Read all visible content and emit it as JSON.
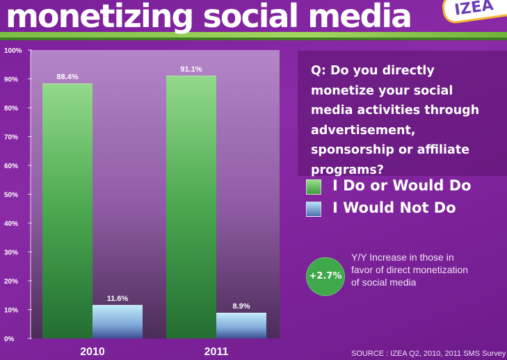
{
  "header": {
    "title": "monetizing social media",
    "logo_text": "IZEA"
  },
  "chart_data": {
    "type": "bar",
    "categories": [
      "2010",
      "2011"
    ],
    "series": [
      {
        "name": "I Do or Would Do",
        "values": [
          88.4,
          91.1
        ],
        "value_labels": [
          "88.4%",
          "91.1%"
        ],
        "color": "#4aa84e"
      },
      {
        "name": "I Would Not Do",
        "values": [
          11.6,
          8.9
        ],
        "value_labels": [
          "11.6%",
          "8.9%"
        ],
        "color": "#8ec9ea"
      }
    ],
    "ylim": [
      0,
      100
    ],
    "yticks": [
      0,
      10,
      20,
      30,
      40,
      50,
      60,
      70,
      80,
      90,
      100
    ],
    "ytick_labels": [
      "0%",
      "10%",
      "20%",
      "30%",
      "40%",
      "50%",
      "60%",
      "70%",
      "80%",
      "90%",
      "100%"
    ],
    "grid": false
  },
  "question": "Q: Do you directly monetize your social media activities through advertisement, sponsorship or affiliate programs?",
  "legend": {
    "green": "I Do or Would Do",
    "blue": "I Would Not Do"
  },
  "badge": {
    "value": "+2.7%",
    "color": "#3fa84a"
  },
  "note": "Y/Y Increase in those in favor of direct monetization of social media",
  "source": "SOURCE : IZEA Q2, 2010, 2011 SMS Survey"
}
